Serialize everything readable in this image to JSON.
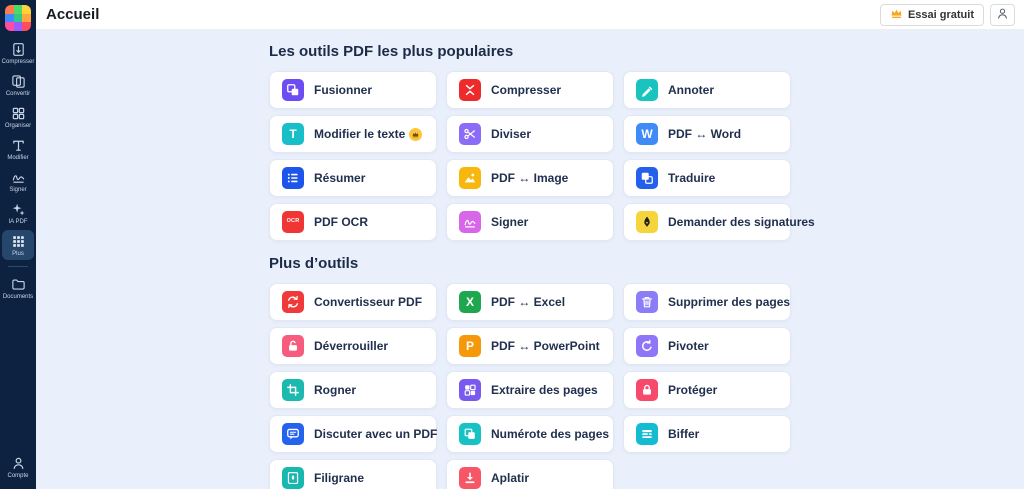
{
  "topbar": {
    "title": "Accueil",
    "trial_button_label": "Essai gratuit"
  },
  "logo_colors": [
    "#FF7B4D",
    "#4CD964",
    "#FFD23C",
    "#3D8BFF",
    "#34C78A",
    "#FFA63D",
    "#FF4DA1",
    "#9A5CFF",
    "#FF4D5E"
  ],
  "sidebar": {
    "items": [
      {
        "id": "compress",
        "label": "Compresser",
        "icon": "compress-doc-icon"
      },
      {
        "id": "convert",
        "label": "Convertir",
        "icon": "convert-docs-icon"
      },
      {
        "id": "organize",
        "label": "Organiser",
        "icon": "organize-grid-icon"
      },
      {
        "id": "edit",
        "label": "Modifier",
        "icon": "text-tool-icon"
      },
      {
        "id": "sign",
        "label": "Signer",
        "icon": "signature-small-icon"
      },
      {
        "id": "ai-pdf",
        "label": "IA PDF",
        "icon": "sparkles-icon"
      },
      {
        "id": "more",
        "label": "Plus",
        "icon": "apps-grid-icon",
        "active": true,
        "divider_after": true
      },
      {
        "id": "documents",
        "label": "Documents",
        "icon": "folder-icon"
      }
    ],
    "account": {
      "id": "account",
      "label": "Compte",
      "icon": "person-icon"
    }
  },
  "sections": [
    {
      "heading": "Les outils PDF les plus populaires",
      "tools": [
        {
          "id": "merge",
          "label": "Fusionner",
          "icon": "merge-icon",
          "color": "#6C4DF3"
        },
        {
          "id": "compress",
          "label": "Compresser",
          "icon": "compress-icon",
          "color": "#EE2B2B"
        },
        {
          "id": "annotate",
          "label": "Annoter",
          "icon": "annotate-icon",
          "color": "#18C3C0"
        },
        {
          "id": "edit-text",
          "label": "Modifier le texte",
          "icon": "text-icon",
          "color": "#18BFC9",
          "badge": "crown-badge"
        },
        {
          "id": "split",
          "label": "Diviser",
          "icon": "scissors-icon",
          "color": "#8A6CF6"
        },
        {
          "id": "pdf-word",
          "label": "PDF ↔ Word",
          "icon": "word-icon",
          "color": "#3E8BF7"
        },
        {
          "id": "summarize",
          "label": "Résumer",
          "icon": "list-icon",
          "color": "#1D55EC"
        },
        {
          "id": "pdf-image",
          "label": "PDF ↔ Image",
          "icon": "image-icon",
          "color": "#F7B70C"
        },
        {
          "id": "translate",
          "label": "Traduire",
          "icon": "translate-icon",
          "color": "#2460EB"
        },
        {
          "id": "pdf-ocr",
          "label": "PDF OCR",
          "icon": "ocr-icon",
          "color": "#F03535"
        },
        {
          "id": "sign",
          "label": "Signer",
          "icon": "sign-squiggle-icon",
          "color": "#D766E8"
        },
        {
          "id": "request-signatures",
          "label": "Demander des signatures",
          "icon": "fountain-pen-icon",
          "color": "#F6D43B"
        }
      ]
    },
    {
      "heading": "Plus d’outils",
      "tools": [
        {
          "id": "pdf-converter",
          "label": "Convertisseur PDF",
          "icon": "convert-cycle-icon",
          "color": "#F03A3A"
        },
        {
          "id": "pdf-excel",
          "label": "PDF ↔ Excel",
          "icon": "excel-icon",
          "color": "#1FA750"
        },
        {
          "id": "delete-pages",
          "label": "Supprimer des pages",
          "icon": "trash-icon",
          "color": "#8B7CF8"
        },
        {
          "id": "unlock",
          "label": "Déverrouiller",
          "icon": "unlock-icon",
          "color": "#F75C7E"
        },
        {
          "id": "pdf-powerpoint",
          "label": "PDF ↔ PowerPoint",
          "icon": "powerpoint-icon",
          "color": "#F5990B"
        },
        {
          "id": "rotate",
          "label": "Pivoter",
          "icon": "rotate-icon",
          "color": "#8F76F8"
        },
        {
          "id": "crop",
          "label": "Rogner",
          "icon": "crop-icon",
          "color": "#1CB9AE"
        },
        {
          "id": "extract-pages",
          "label": "Extraire des pages",
          "icon": "extract-grid-icon",
          "color": "#7A5AEE"
        },
        {
          "id": "protect",
          "label": "Protéger",
          "icon": "lock-icon",
          "color": "#F7496B"
        },
        {
          "id": "chat-pdf",
          "label": "Discuter avec un PDF",
          "icon": "chat-icon",
          "color": "#2563EE"
        },
        {
          "id": "page-numbers",
          "label": "Numérote des pages",
          "icon": "page-number-icon",
          "color": "#16C2C4"
        },
        {
          "id": "redact",
          "label": "Biffer",
          "icon": "redact-icon",
          "color": "#14BCD2"
        },
        {
          "id": "watermark",
          "label": "Filigrane",
          "icon": "watermark-icon",
          "color": "#18B7B0"
        },
        {
          "id": "flatten",
          "label": "Aplatir",
          "icon": "flatten-icon",
          "color": "#F75667"
        }
      ]
    }
  ]
}
